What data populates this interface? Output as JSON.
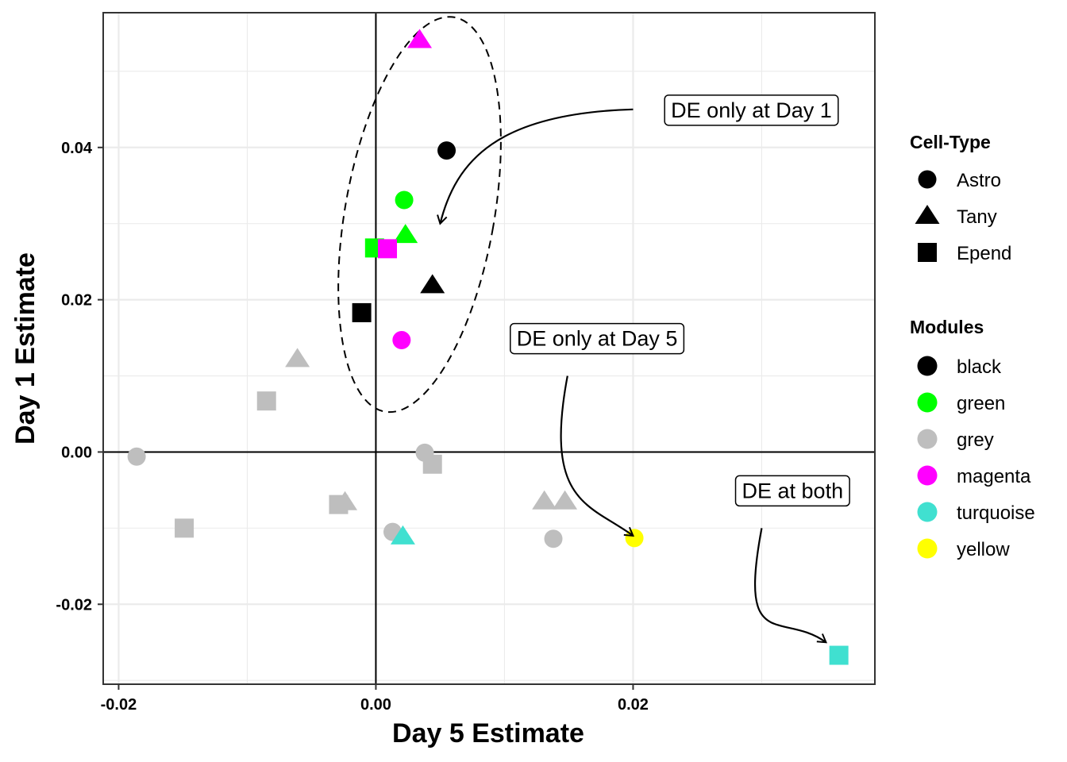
{
  "chart_data": {
    "type": "scatter",
    "xlabel": "Day 5 Estimate",
    "ylabel": "Day 1 Estimate",
    "xlim": [
      -0.0212,
      0.0388
    ],
    "ylim": [
      -0.0305,
      0.0577
    ],
    "x_ticks": [
      -0.02,
      0.0,
      0.02
    ],
    "x_tick_labels": [
      "-0.02",
      "0.00",
      "0.02"
    ],
    "y_ticks": [
      -0.02,
      0.0,
      0.02,
      0.04
    ],
    "y_tick_labels": [
      "-0.02",
      "0.00",
      "0.02",
      "0.04"
    ],
    "grid": true,
    "reference_lines": {
      "x": 0,
      "y": 0
    },
    "colors": {
      "black": "#000000",
      "green": "#00ff00",
      "grey": "#bebebe",
      "magenta": "#ff00ff",
      "turquoise": "#40e0d0",
      "yellow": "#ffff00"
    },
    "points": [
      {
        "x": 0.0034,
        "y": 0.0541,
        "shape": "Tany",
        "module": "magenta"
      },
      {
        "x": 0.0055,
        "y": 0.0396,
        "shape": "Astro",
        "module": "black"
      },
      {
        "x": 0.0022,
        "y": 0.0331,
        "shape": "Astro",
        "module": "green"
      },
      {
        "x": 0.0023,
        "y": 0.0285,
        "shape": "Tany",
        "module": "green"
      },
      {
        "x": -0.0001,
        "y": 0.0268,
        "shape": "Epend",
        "module": "green"
      },
      {
        "x": 0.0009,
        "y": 0.0267,
        "shape": "Epend",
        "module": "magenta"
      },
      {
        "x": 0.0044,
        "y": 0.0219,
        "shape": "Tany",
        "module": "black"
      },
      {
        "x": -0.0011,
        "y": 0.0183,
        "shape": "Epend",
        "module": "black"
      },
      {
        "x": 0.002,
        "y": 0.0147,
        "shape": "Astro",
        "module": "magenta"
      },
      {
        "x": -0.0061,
        "y": 0.0122,
        "shape": "Tany",
        "module": "grey"
      },
      {
        "x": -0.0085,
        "y": 0.0067,
        "shape": "Epend",
        "module": "grey"
      },
      {
        "x": -0.0186,
        "y": -0.0006,
        "shape": "Astro",
        "module": "grey"
      },
      {
        "x": 0.0038,
        "y": -0.0001,
        "shape": "Astro",
        "module": "grey"
      },
      {
        "x": 0.0044,
        "y": -0.0016,
        "shape": "Epend",
        "module": "grey"
      },
      {
        "x": -0.0029,
        "y": -0.0069,
        "shape": "Epend",
        "module": "grey"
      },
      {
        "x": -0.0024,
        "y": -0.0066,
        "shape": "Tany",
        "module": "grey"
      },
      {
        "x": -0.0149,
        "y": -0.01,
        "shape": "Epend",
        "module": "grey"
      },
      {
        "x": 0.0013,
        "y": -0.0105,
        "shape": "Astro",
        "module": "grey"
      },
      {
        "x": 0.0021,
        "y": -0.0111,
        "shape": "Tany",
        "module": "turquoise"
      },
      {
        "x": 0.0131,
        "y": -0.0065,
        "shape": "Tany",
        "module": "grey"
      },
      {
        "x": 0.0147,
        "y": -0.0065,
        "shape": "Tany",
        "module": "grey"
      },
      {
        "x": 0.0138,
        "y": -0.0114,
        "shape": "Astro",
        "module": "grey"
      },
      {
        "x": 0.0201,
        "y": -0.0113,
        "shape": "Astro",
        "module": "yellow"
      },
      {
        "x": 0.036,
        "y": -0.0267,
        "shape": "Epend",
        "module": "turquoise"
      }
    ],
    "ellipse": {
      "cx": 0.0034,
      "cy": 0.0312,
      "rx": 0.0058,
      "ry": 0.0263,
      "style": "dashed"
    },
    "annotations": [
      {
        "text": "DE only at Day 1",
        "x": 0.0292,
        "y": 0.045,
        "arrow_from": [
          0.02,
          0.045
        ],
        "arrow_to": [
          0.005,
          0.03
        ]
      },
      {
        "text": "DE only at Day 5",
        "x": 0.0172,
        "y": 0.015,
        "arrow_from": [
          0.0149,
          0.01
        ],
        "arrow_to": [
          0.02,
          -0.011
        ]
      },
      {
        "text": "DE at both",
        "x": 0.0324,
        "y": -0.005,
        "arrow_from": [
          0.03,
          -0.01
        ],
        "arrow_to": [
          0.035,
          -0.025
        ]
      }
    ],
    "legend": {
      "placement": "right",
      "shape_title": "Cell-Type",
      "shapes": [
        "Astro",
        "Tany",
        "Epend"
      ],
      "color_title": "Modules",
      "modules": [
        "black",
        "green",
        "grey",
        "magenta",
        "turquoise",
        "yellow"
      ]
    }
  }
}
